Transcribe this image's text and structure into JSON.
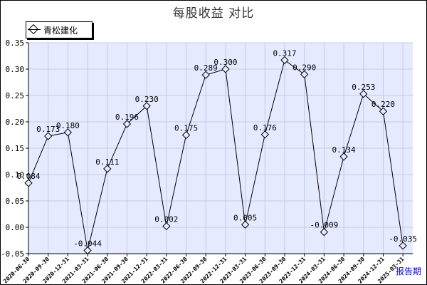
{
  "title": "每股收益  对比",
  "legend": {
    "series_name": "青松建化"
  },
  "x_axis_label": "报告期",
  "colors": {
    "plot_bg": "#e6eaff",
    "grid": "#c4c9e6",
    "line": "#000000"
  },
  "chart_data": {
    "type": "line",
    "title": "每股收益  对比",
    "xlabel": "报告期",
    "ylabel": "",
    "ylim": [
      -0.05,
      0.35
    ],
    "yticks": [
      -0.05,
      0.0,
      0.05,
      0.1,
      0.15,
      0.2,
      0.25,
      0.3,
      0.35
    ],
    "categories": [
      "2020-06-30",
      "2020-09-30",
      "2020-12-31",
      "2021-03-31",
      "2021-06-30",
      "2021-09-30",
      "2021-12-31",
      "2022-03-31",
      "2022-06-30",
      "2022-09-30",
      "2022-12-31",
      "2023-03-31",
      "2023-06-30",
      "2023-09-30",
      "2023-12-31",
      "2024-03-31",
      "2024-06-30",
      "2024-09-30",
      "2024-12-31",
      "2025-03-31"
    ],
    "series": [
      {
        "name": "青松建化",
        "values": [
          0.084,
          0.173,
          0.18,
          -0.044,
          0.111,
          0.196,
          0.23,
          0.002,
          0.175,
          0.289,
          0.3,
          0.005,
          0.176,
          0.317,
          0.29,
          -0.009,
          0.134,
          0.253,
          0.22,
          -0.035
        ],
        "labels": [
          "0.084",
          "0.173",
          "0.180",
          "-0.044",
          "0.111",
          "0.196",
          "0.230",
          "0.002",
          "0.175",
          "0.289",
          "0.300",
          "0.005",
          "0.176",
          "0.317",
          "0.290",
          "-0.009",
          "0.134",
          "0.253",
          "0.220",
          "-0.035"
        ]
      }
    ],
    "grid": true,
    "legend_position": "top-left"
  }
}
